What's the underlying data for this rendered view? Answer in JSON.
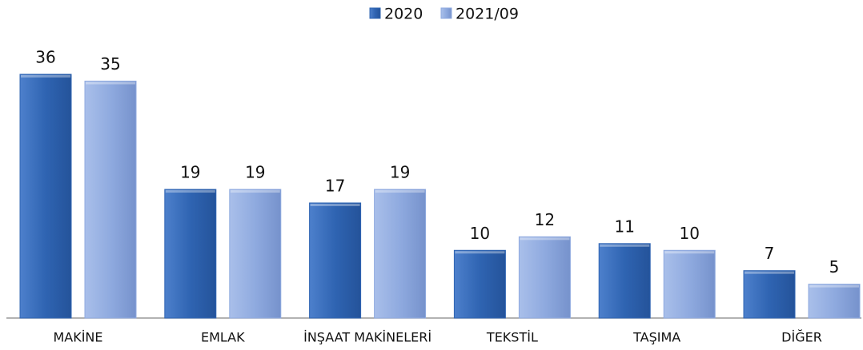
{
  "chart_data": {
    "type": "bar",
    "categories": [
      "MAKİNE",
      "EMLAK",
      "İNŞAAT MAKİNELERİ",
      "TEKSTİL",
      "TAŞIMA",
      "DİĞER"
    ],
    "series": [
      {
        "name": "2020",
        "color": "#2f64b2",
        "values": [
          36,
          19,
          17,
          10,
          11,
          7
        ]
      },
      {
        "name": "2021/09",
        "color": "#8faadf",
        "values": [
          35,
          19,
          19,
          12,
          10,
          5
        ]
      }
    ],
    "legend": "top"
  }
}
